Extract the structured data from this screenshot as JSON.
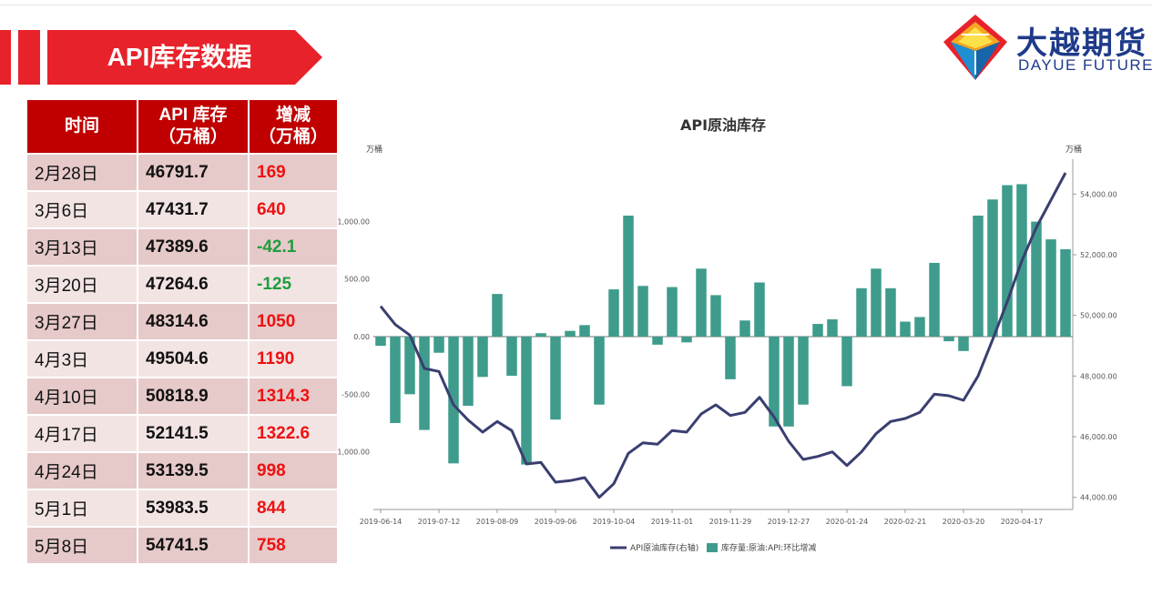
{
  "header": {
    "title": "API库存数据",
    "logo_cn": "大越期货",
    "logo_en": "DAYUE FUTURES"
  },
  "colors": {
    "banner": "#e8222a",
    "table_header": "#c00000",
    "row_odd": "#e6c9c9",
    "row_even": "#f3e4e4",
    "positive": "#ee1111",
    "negative": "#1f9e3f",
    "bar": "#3f9c8c",
    "line": "#3a3f70"
  },
  "table": {
    "headers": {
      "date": "时间",
      "stock": "API 库存（万桶）",
      "change": "增减（万桶）"
    },
    "rows": [
      {
        "date": "2月28日",
        "stock": "46791.7",
        "change": "169"
      },
      {
        "date": "3月6日",
        "stock": "47431.7",
        "change": "640"
      },
      {
        "date": "3月13日",
        "stock": "47389.6",
        "change": "-42.1"
      },
      {
        "date": "3月20日",
        "stock": "47264.6",
        "change": "-125"
      },
      {
        "date": "3月27日",
        "stock": "48314.6",
        "change": "1050"
      },
      {
        "date": "4月3日",
        "stock": "49504.6",
        "change": "1190"
      },
      {
        "date": "4月10日",
        "stock": "50818.9",
        "change": "1314.3"
      },
      {
        "date": "4月17日",
        "stock": "52141.5",
        "change": "1322.6"
      },
      {
        "date": "4月24日",
        "stock": "53139.5",
        "change": "998"
      },
      {
        "date": "5月1日",
        "stock": "53983.5",
        "change": "844"
      },
      {
        "date": "5月8日",
        "stock": "54741.5",
        "change": "758"
      }
    ]
  },
  "chart_data": {
    "type": "bar",
    "title": "API原油库存",
    "y_left_unit": "万桶",
    "y_right_unit": "万桶",
    "x_tick_labels": [
      "2019-06-14",
      "2019-07-12",
      "2019-08-09",
      "2019-09-06",
      "2019-10-04",
      "2019-11-01",
      "2019-11-29",
      "2019-12-27",
      "2020-01-24",
      "2020-02-21",
      "2020-03-20",
      "2020-04-17"
    ],
    "left_axis": {
      "ylim": [
        -1500,
        1500
      ],
      "ticks": [
        -1000,
        -500,
        0,
        500,
        1000
      ],
      "tick_labels": [
        "-1,000.00",
        "-500.00",
        "0.00",
        "500.00",
        "1,000.00"
      ]
    },
    "right_axis": {
      "ylim": [
        43600,
        55000
      ],
      "ticks": [
        44000,
        46000,
        48000,
        50000,
        52000,
        54000
      ],
      "tick_labels": [
        "44,000.00",
        "46,000.00",
        "48,000.00",
        "50,000.00",
        "52,000.00",
        "54,000.00"
      ]
    },
    "legend_position": "bottom",
    "series": [
      {
        "name": "API原油库存(右轴)",
        "type": "line",
        "axis": "right",
        "values": [
          50300,
          49700,
          49350,
          48250,
          48150,
          47050,
          46550,
          46150,
          46500,
          46200,
          45100,
          45150,
          44500,
          44550,
          44650,
          44000,
          44450,
          45450,
          45800,
          45750,
          46200,
          46150,
          46750,
          47050,
          46700,
          46800,
          47300,
          46650,
          45850,
          45250,
          45350,
          45500,
          45050,
          45500,
          46100,
          46500,
          46600,
          46800,
          47400,
          47350,
          47200,
          48000,
          49200,
          50450,
          51800,
          52900,
          53800,
          54700
        ]
      },
      {
        "name": "库存量:原油:API:环比增减",
        "type": "bar",
        "axis": "left",
        "values": [
          -80,
          -750,
          -500,
          -810,
          -140,
          -1100,
          -600,
          -350,
          370,
          -340,
          -1110,
          30,
          -720,
          50,
          100,
          -590,
          410,
          1050,
          440,
          -70,
          430,
          -50,
          590,
          360,
          -370,
          140,
          470,
          -780,
          -780,
          -590,
          110,
          150,
          -430,
          420,
          590,
          420,
          130,
          170,
          640,
          -40,
          -125,
          1050,
          1190,
          1314.3,
          1322.6,
          998,
          844,
          758
        ]
      }
    ]
  }
}
